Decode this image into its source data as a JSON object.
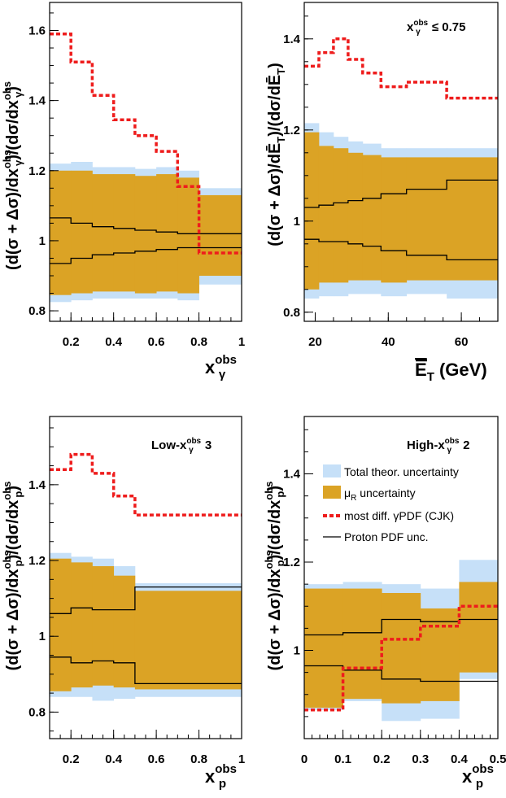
{
  "figure": {
    "colors": {
      "total": "#c6e0f8",
      "mur": "#dba325",
      "gamma": "#ee1c1c",
      "proton": "#000000"
    },
    "legend": {
      "total": "Total theor. uncertainty",
      "mur_mu": "μ",
      "mur_sub": "R",
      "mur_rest": " uncertainty",
      "gamma": "most diff. γPDF (CJK)",
      "proton": "Proton PDF unc."
    }
  },
  "chart_data": [
    {
      "type": "area",
      "title": "",
      "xlabel": {
        "main": "x",
        "sup": "obs",
        "sub": "γ"
      },
      "ylabel": "(d(σ + Δσ)/dx_γ^obs)/(dσ/dx_γ^obs)",
      "xlim": [
        0.1,
        1.0
      ],
      "ylim": [
        0.77,
        1.68
      ],
      "xticks": [
        0.2,
        0.4,
        0.6,
        0.8,
        1
      ],
      "xtick_labels": [
        "0.2",
        "0.4",
        "0.6",
        "0.8",
        "1"
      ],
      "yticks": [
        0.8,
        1.0,
        1.2,
        1.4,
        1.6
      ],
      "ytick_labels": [
        "0.8",
        "1",
        "1.2",
        "1.4",
        "1.6"
      ],
      "bin_edges": [
        0.1,
        0.2,
        0.3,
        0.4,
        0.5,
        0.6,
        0.7,
        0.8,
        1.0
      ],
      "total_upper": [
        1.22,
        1.225,
        1.21,
        1.21,
        1.205,
        1.21,
        1.2,
        1.15
      ],
      "total_lower": [
        0.825,
        0.83,
        0.835,
        0.835,
        0.835,
        0.835,
        0.83,
        0.875
      ],
      "mur_upper": [
        1.2,
        1.2,
        1.19,
        1.19,
        1.185,
        1.19,
        1.18,
        1.13
      ],
      "mur_lower": [
        0.845,
        0.85,
        0.855,
        0.855,
        0.85,
        0.855,
        0.85,
        0.9
      ],
      "proton_upper": [
        1.065,
        1.05,
        1.04,
        1.035,
        1.03,
        1.025,
        1.02,
        1.02
      ],
      "proton_lower": [
        0.935,
        0.95,
        0.96,
        0.965,
        0.97,
        0.975,
        0.98,
        0.98
      ],
      "gamma_pdf": [
        1.59,
        1.51,
        1.415,
        1.345,
        1.3,
        1.255,
        1.155,
        0.965
      ]
    },
    {
      "type": "area",
      "title": "",
      "annotation": {
        "main": "x",
        "sup": "obs",
        "sub": "γ",
        "rest": " ≤ 0.75"
      },
      "xlabel": {
        "main": "E",
        "sub": "T",
        "rest": " (GeV)"
      },
      "ylabel": "(d(σ + Δσ)/dĒ_T)/(dσ/dĒ_T)",
      "xlim": [
        17,
        70
      ],
      "ylim": [
        0.78,
        1.48
      ],
      "xticks": [
        20,
        40,
        60
      ],
      "xtick_labels": [
        "20",
        "40",
        "60"
      ],
      "yticks": [
        0.8,
        1.0,
        1.2,
        1.4
      ],
      "ytick_labels": [
        "0.8",
        "1",
        "1.2",
        "1.4"
      ],
      "bin_edges": [
        17,
        21,
        25,
        29,
        33,
        38,
        45,
        56,
        70
      ],
      "total_upper": [
        1.215,
        1.195,
        1.185,
        1.175,
        1.17,
        1.16,
        1.16,
        1.16
      ],
      "total_lower": [
        0.83,
        0.835,
        0.835,
        0.84,
        0.84,
        0.835,
        0.84,
        0.83
      ],
      "mur_upper": [
        1.195,
        1.165,
        1.16,
        1.15,
        1.145,
        1.14,
        1.14,
        1.14
      ],
      "mur_lower": [
        0.85,
        0.865,
        0.865,
        0.87,
        0.87,
        0.865,
        0.87,
        0.87
      ],
      "proton_upper": [
        1.03,
        1.035,
        1.04,
        1.045,
        1.05,
        1.06,
        1.07,
        1.09
      ],
      "proton_lower": [
        0.96,
        0.955,
        0.955,
        0.95,
        0.945,
        0.935,
        0.925,
        0.915
      ],
      "gamma_pdf": [
        1.34,
        1.37,
        1.4,
        1.355,
        1.325,
        1.295,
        1.305,
        1.27
      ]
    },
    {
      "type": "area",
      "title": "",
      "annotation": {
        "main": "Low-x",
        "sup": "obs",
        "sub": "γ",
        "rest": " 3"
      },
      "xlabel": {
        "main": "x",
        "sup": "obs",
        "sub": "p"
      },
      "ylabel": "(d(σ + Δσ)/dx_p^obs)/(dσ/dx_p^obs)",
      "xlim": [
        0.1,
        1.0
      ],
      "ylim": [
        0.73,
        1.58
      ],
      "xticks": [
        0.2,
        0.4,
        0.6,
        0.8,
        1
      ],
      "xtick_labels": [
        "0.2",
        "0.4",
        "0.6",
        "0.8",
        "1"
      ],
      "yticks": [
        0.8,
        1.0,
        1.2,
        1.4
      ],
      "ytick_labels": [
        "0.8",
        "1",
        "1.2",
        "1.4"
      ],
      "bin_edges": [
        0.1,
        0.2,
        0.3,
        0.4,
        0.5,
        1.0
      ],
      "total_upper": [
        1.22,
        1.21,
        1.205,
        1.185,
        1.14
      ],
      "total_lower": [
        0.84,
        0.84,
        0.83,
        0.835,
        0.84
      ],
      "mur_upper": [
        1.205,
        1.195,
        1.185,
        1.16,
        1.12
      ],
      "mur_lower": [
        0.855,
        0.865,
        0.87,
        0.865,
        0.86
      ],
      "proton_upper": [
        1.06,
        1.075,
        1.07,
        1.07,
        1.13
      ],
      "proton_lower": [
        0.945,
        0.93,
        0.935,
        0.93,
        0.875
      ],
      "gamma_pdf": [
        1.44,
        1.48,
        1.43,
        1.37,
        1.32
      ]
    },
    {
      "type": "area",
      "title": "",
      "annotation": {
        "main": "High-x",
        "sup": "obs",
        "sub": "γ",
        "rest": " 2"
      },
      "xlabel": {
        "main": "x",
        "sup": "obs",
        "sub": "p"
      },
      "ylabel": "(d(σ + Δσ)/dx_p^obs)/(dσ/dx_p^obs)",
      "xlim": [
        0.0,
        0.5
      ],
      "ylim": [
        0.8,
        1.53
      ],
      "xticks": [
        0,
        0.1,
        0.2,
        0.3,
        0.4,
        0.5
      ],
      "xtick_labels": [
        "0",
        "0.1",
        "0.2",
        "0.3",
        "0.4",
        "0.5"
      ],
      "yticks": [
        1.0,
        1.2,
        1.4
      ],
      "ytick_labels": [
        "1",
        "1.2",
        "1.4"
      ],
      "bin_edges": [
        0.0,
        0.1,
        0.2,
        0.3,
        0.4,
        0.5
      ],
      "total_upper": [
        1.15,
        1.155,
        1.15,
        1.14,
        1.205
      ],
      "total_lower": [
        0.865,
        0.885,
        0.84,
        0.845,
        0.935
      ],
      "mur_upper": [
        1.14,
        1.14,
        1.13,
        1.095,
        1.155
      ],
      "mur_lower": [
        0.87,
        0.89,
        0.88,
        0.885,
        0.95
      ],
      "proton_upper": [
        1.035,
        1.04,
        1.07,
        1.065,
        1.07
      ],
      "proton_lower": [
        0.965,
        0.955,
        0.935,
        0.93,
        0.93
      ],
      "gamma_pdf": [
        0.865,
        0.96,
        1.025,
        1.055,
        1.1
      ]
    }
  ]
}
